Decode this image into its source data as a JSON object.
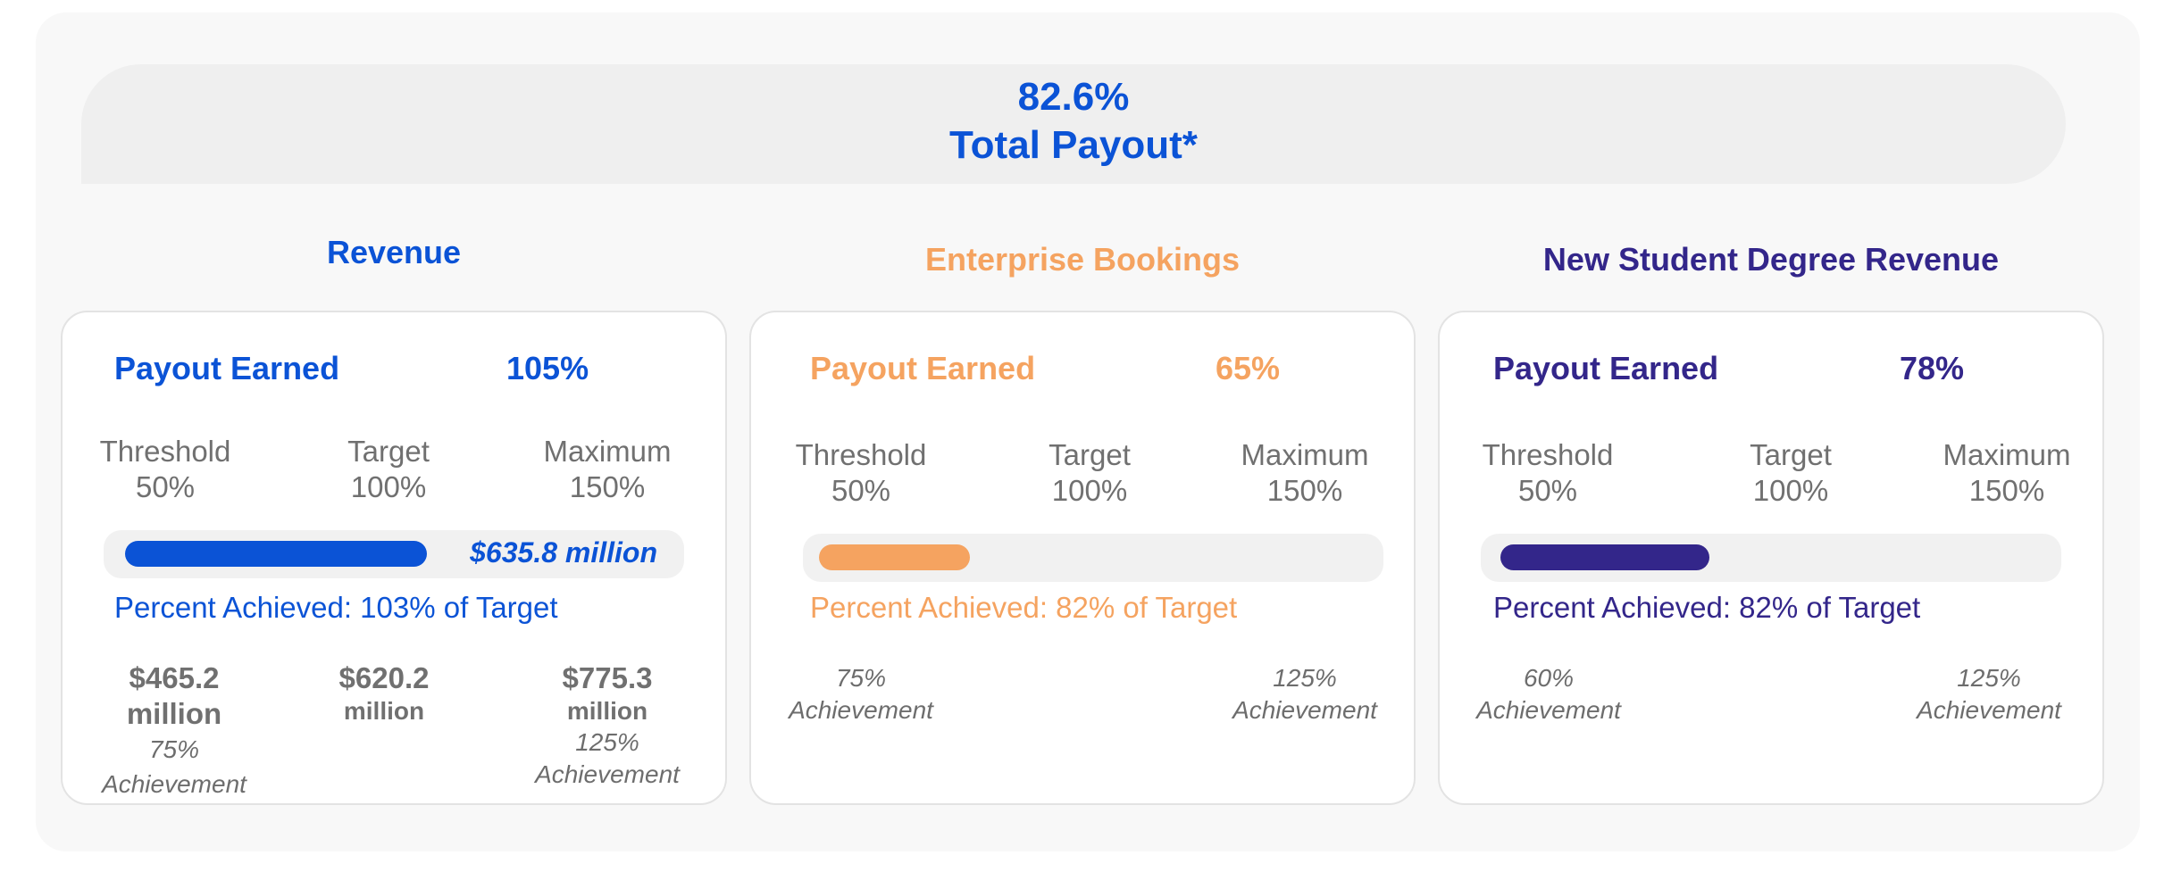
{
  "colors": {
    "revenue": "#0b53d6",
    "enterprise": "#f5a360",
    "new_student": "#33268a",
    "gray_text": "#707070",
    "track": "#f1f1f1"
  },
  "header": {
    "total_percent": "82.6%",
    "total_label": "Total Payout*"
  },
  "level_labels": {
    "threshold": "Threshold",
    "target": "Target",
    "maximum": "Maximum"
  },
  "level_values": {
    "threshold": "50%",
    "target": "100%",
    "maximum": "150%"
  },
  "payout_label": "Payout Earned",
  "chart_data": [
    {
      "type": "bar",
      "title": "Revenue",
      "payout_earned": "105%",
      "bar_value": "$635.8 million",
      "percent_achieved_text": "Percent Achieved: 103% of Target",
      "progress": 0.52,
      "threshold_amount": {
        "value": "$465.2",
        "unit": "million",
        "achievement": "75%",
        "achievement_word": "Achievement"
      },
      "target_amount": {
        "value": "$620.2",
        "unit": "million"
      },
      "maximum_amount": {
        "value": "$775.3",
        "unit": "million",
        "achievement": "125%",
        "achievement_word": "Achievement"
      }
    },
    {
      "type": "bar",
      "title": "Enterprise Bookings",
      "payout_earned": "65%",
      "percent_achieved_text": "Percent Achieved: 82% of Target",
      "progress": 0.26,
      "threshold_note": {
        "achievement": "75%",
        "achievement_word": "Achievement"
      },
      "maximum_note": {
        "achievement": "125%",
        "achievement_word": "Achievement"
      }
    },
    {
      "type": "bar",
      "title": "New Student Degree Revenue",
      "payout_earned": "78%",
      "percent_achieved_text": "Percent Achieved: 82% of Target",
      "progress": 0.36,
      "threshold_note": {
        "achievement": "60%",
        "achievement_word": "Achievement"
      },
      "maximum_note": {
        "achievement": "125%",
        "achievement_word": "Achievement"
      }
    }
  ]
}
